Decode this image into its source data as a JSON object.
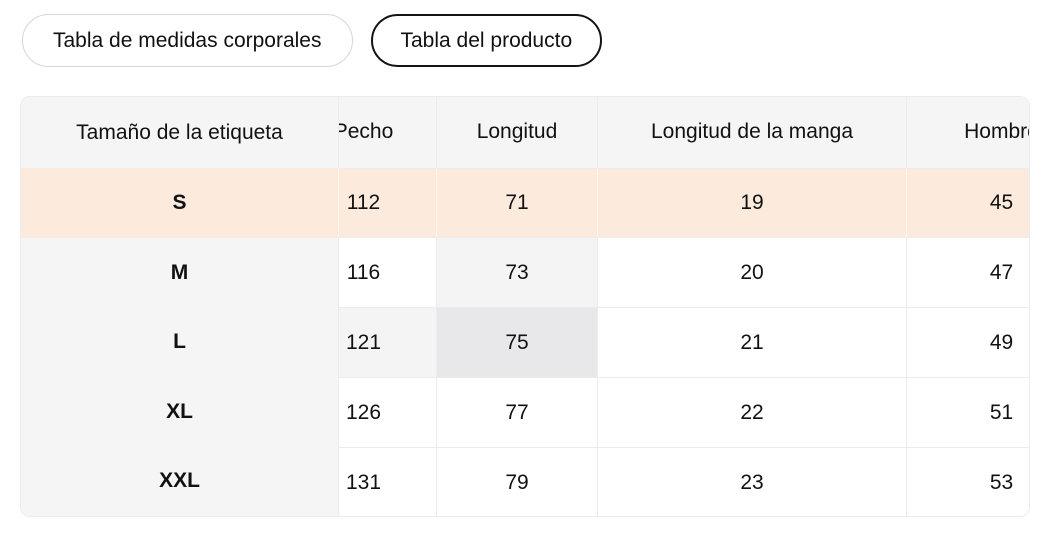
{
  "tabs": [
    {
      "label": "Tabla de medidas corporales",
      "selected": false
    },
    {
      "label": "Tabla del producto",
      "selected": true
    }
  ],
  "table": {
    "columns": [
      "Tamaño de la etiqueta",
      "Pecho",
      "Longitud",
      "Longitud de la manga",
      "Hombro"
    ],
    "rows": [
      {
        "size": "S",
        "values": [
          112,
          71,
          19,
          45
        ],
        "selected": true
      },
      {
        "size": "M",
        "values": [
          116,
          73,
          20,
          47
        ],
        "selected": false
      },
      {
        "size": "L",
        "values": [
          121,
          75,
          21,
          49
        ],
        "selected": false
      },
      {
        "size": "XL",
        "values": [
          126,
          77,
          22,
          51
        ],
        "selected": false
      },
      {
        "size": "XXL",
        "values": [
          131,
          79,
          23,
          53
        ],
        "selected": false
      }
    ],
    "selected_size": "S",
    "hovered_cell": {
      "size": "L",
      "column": "Longitud",
      "value": 75
    }
  },
  "colors": {
    "selected_row_bg": "#fcebdc",
    "header_bg": "#f5f5f6",
    "column_highlight_bg": "#f4f4f5",
    "cell_highlight_bg": "#e8e8ea",
    "border": "#ececee",
    "active_tab_border": "#141414",
    "inactive_tab_border": "#d6d6d6",
    "text": "#111111"
  }
}
